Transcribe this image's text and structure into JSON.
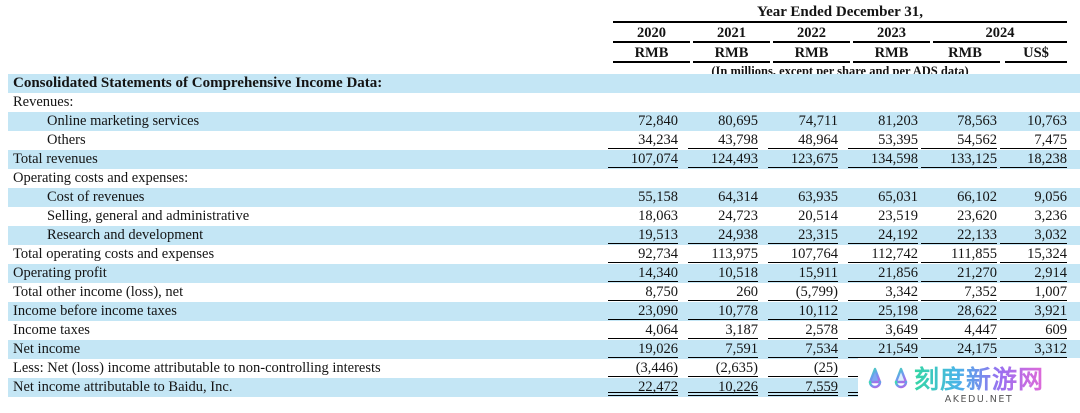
{
  "header": {
    "period_label": "Year Ended December 31,",
    "years": [
      "2020",
      "2021",
      "2022",
      "2023",
      "2024"
    ],
    "currencies": [
      "RMB",
      "RMB",
      "RMB",
      "RMB",
      "RMB",
      "US$"
    ],
    "units_note": "(In millions, except per share and per ADS data)"
  },
  "table": {
    "rows": [
      {
        "label": "Consolidated Statements of Comprehensive Income Data:",
        "indent": false,
        "bold": true,
        "highlight": true,
        "rule": "none",
        "values": []
      },
      {
        "label": "Revenues:",
        "indent": false,
        "bold": false,
        "highlight": false,
        "rule": "none",
        "values": []
      },
      {
        "label": "Online marketing services",
        "indent": true,
        "bold": false,
        "highlight": true,
        "rule": "none",
        "values": [
          "72,840",
          "80,695",
          "74,711",
          "81,203",
          "78,563",
          "10,763"
        ]
      },
      {
        "label": "Others",
        "indent": true,
        "bold": false,
        "highlight": false,
        "rule": "single",
        "values": [
          "34,234",
          "43,798",
          "48,964",
          "53,395",
          "54,562",
          "7,475"
        ]
      },
      {
        "label": "Total revenues",
        "indent": false,
        "bold": false,
        "highlight": true,
        "rule": "single",
        "values": [
          "107,074",
          "124,493",
          "123,675",
          "134,598",
          "133,125",
          "18,238"
        ]
      },
      {
        "label": "Operating costs and expenses:",
        "indent": false,
        "bold": false,
        "highlight": false,
        "rule": "none",
        "values": []
      },
      {
        "label": "Cost of revenues",
        "indent": true,
        "bold": false,
        "highlight": true,
        "rule": "none",
        "values": [
          "55,158",
          "64,314",
          "63,935",
          "65,031",
          "66,102",
          "9,056"
        ]
      },
      {
        "label": "Selling, general and administrative",
        "indent": true,
        "bold": false,
        "highlight": false,
        "rule": "none",
        "values": [
          "18,063",
          "24,723",
          "20,514",
          "23,519",
          "23,620",
          "3,236"
        ]
      },
      {
        "label": "Research and development",
        "indent": true,
        "bold": false,
        "highlight": true,
        "rule": "single",
        "values": [
          "19,513",
          "24,938",
          "23,315",
          "24,192",
          "22,133",
          "3,032"
        ]
      },
      {
        "label": "Total operating costs and expenses",
        "indent": false,
        "bold": false,
        "highlight": false,
        "rule": "single",
        "values": [
          "92,734",
          "113,975",
          "107,764",
          "112,742",
          "111,855",
          "15,324"
        ]
      },
      {
        "label": "Operating profit",
        "indent": false,
        "bold": false,
        "highlight": true,
        "rule": "single",
        "values": [
          "14,340",
          "10,518",
          "15,911",
          "21,856",
          "21,270",
          "2,914"
        ]
      },
      {
        "label": "Total other income (loss), net",
        "indent": false,
        "bold": false,
        "highlight": false,
        "rule": "single",
        "values": [
          "8,750",
          "260",
          "(5,799)",
          "3,342",
          "7,352",
          "1,007"
        ]
      },
      {
        "label": "Income before income taxes",
        "indent": false,
        "bold": false,
        "highlight": true,
        "rule": "single",
        "values": [
          "23,090",
          "10,778",
          "10,112",
          "25,198",
          "28,622",
          "3,921"
        ]
      },
      {
        "label": "Income taxes",
        "indent": false,
        "bold": false,
        "highlight": false,
        "rule": "single",
        "values": [
          "4,064",
          "3,187",
          "2,578",
          "3,649",
          "4,447",
          "609"
        ]
      },
      {
        "label": "Net income",
        "indent": false,
        "bold": false,
        "highlight": true,
        "rule": "single",
        "values": [
          "19,026",
          "7,591",
          "7,534",
          "21,549",
          "24,175",
          "3,312"
        ]
      },
      {
        "label": "Less: Net (loss) income attributable to non-controlling interests",
        "indent": false,
        "bold": false,
        "highlight": false,
        "rule": "single",
        "values": [
          "(3,446)",
          "(2,635)",
          "(25)",
          "",
          "",
          ""
        ]
      },
      {
        "label": "Net income attributable to Baidu, Inc.",
        "indent": false,
        "bold": false,
        "highlight": true,
        "rule": "double",
        "values": [
          "22,472",
          "10,226",
          "7,559",
          "",
          "",
          ""
        ]
      }
    ]
  },
  "watermark": {
    "site_name": "刻度新游网",
    "site_url": "AKEDU.NET"
  },
  "colors": {
    "row_highlight": "#c4e6f5",
    "rule_color": "#000000",
    "watermark_gradient_start": "#35d6a4",
    "watermark_gradient_mid": "#49b4e8",
    "watermark_gradient_end": "#e06ad8",
    "watermark_url_color": "#555555"
  }
}
